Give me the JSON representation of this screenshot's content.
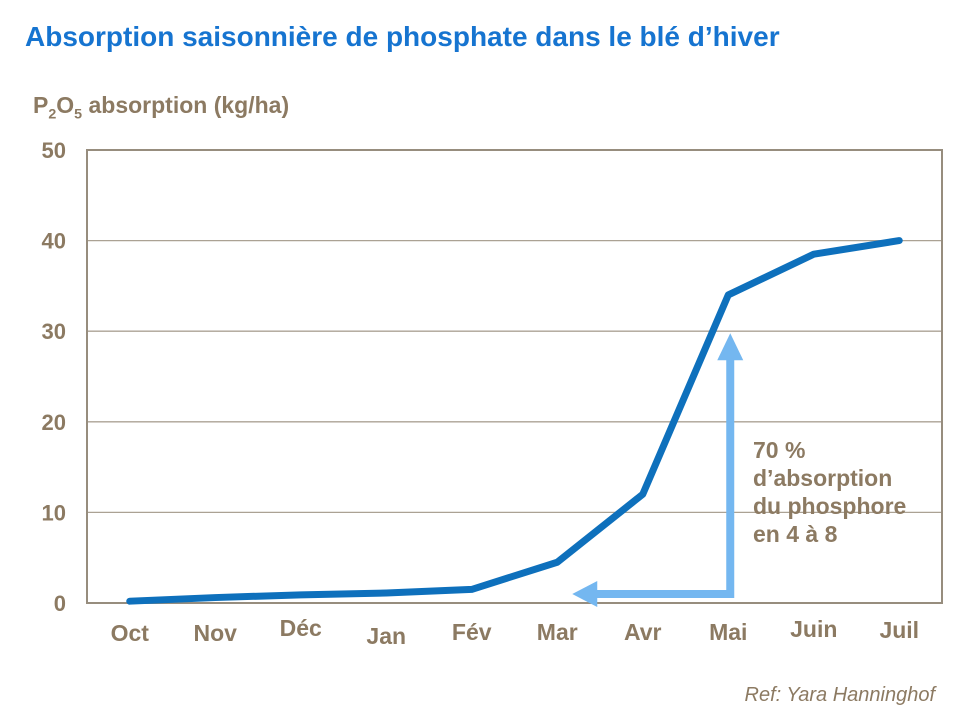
{
  "title": "Absorption saisonnière de phosphate dans le blé d’hiver",
  "y_axis_title": {
    "el1": "P",
    "sub1": "2",
    "el2": "O",
    "sub2": "5",
    "rest": " absorption (kg/ha)"
  },
  "footer": {
    "ref": "Ref: Yara Hanninghof"
  },
  "colors": {
    "title_blue": "#1674D0",
    "line_blue": "#0E70BC",
    "arrow_light_blue": "#74B7F0",
    "text_brown": "#8C7A62",
    "axis_border": "#978D7E",
    "gridline": "#ABA294",
    "background": "#FFFFFF"
  },
  "chart_data": {
    "type": "line",
    "title": "Absorption saisonnière de phosphate dans le blé d’hiver",
    "categories": [
      "Oct",
      "Nov",
      "Déc",
      "Jan",
      "Fév",
      "Mar",
      "Avr",
      "Mai",
      "Juin",
      "Juil"
    ],
    "series": [
      {
        "name": "P₂O₅ absorption (kg/ha)",
        "values": [
          0.2,
          0.6,
          0.9,
          1.1,
          1.5,
          4.5,
          12,
          34,
          38.5,
          40
        ]
      }
    ],
    "xlabel": "",
    "ylabel": "P₂O₅ absorption (kg/ha)",
    "ylim": [
      0,
      50
    ],
    "yticks": [
      0,
      10,
      20,
      30,
      40,
      50
    ],
    "grid": true,
    "legend": false,
    "annotation": {
      "lines": [
        "70 %",
        "d’absorption",
        "du phosphore",
        "en 4 à 8"
      ],
      "arrow_up_at_month": "Mai",
      "arrow_up_to_value": 30,
      "arrow_sweep_left_to_month": "Mar"
    }
  }
}
